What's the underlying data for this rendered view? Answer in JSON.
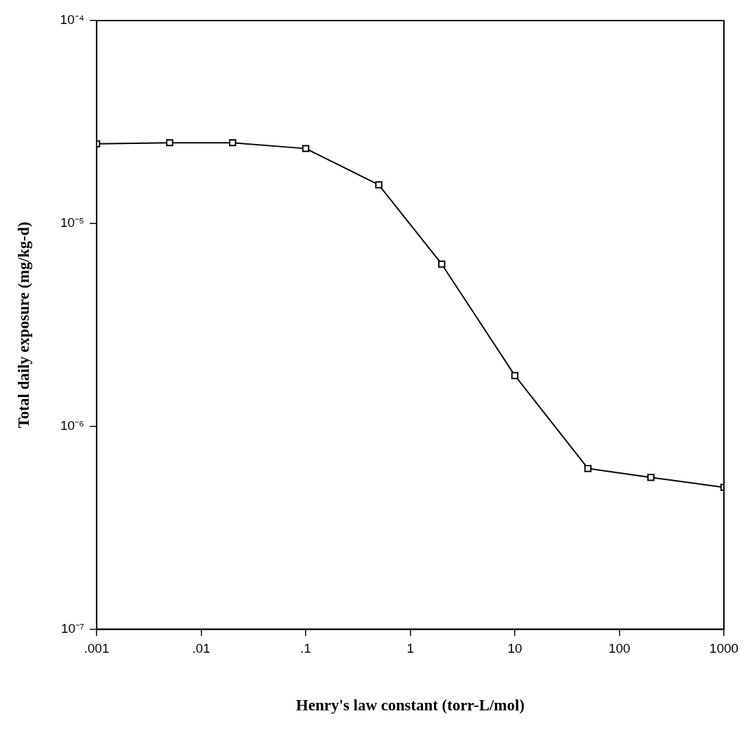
{
  "chart_data": {
    "type": "line",
    "xlabel": "Henry's law constant (torr-L/mol)",
    "ylabel": "Total daily exposure (mg/kg-d)",
    "x": [
      0.001,
      0.005,
      0.02,
      0.1,
      0.5,
      2,
      10,
      50,
      200,
      1000
    ],
    "series": [
      {
        "color": "#000000",
        "values": [
          2.47e-05,
          2.5e-05,
          2.5e-05,
          2.34e-05,
          1.55e-05,
          6.3e-06,
          1.78e-06,
          6.2e-07,
          5.6e-07,
          5e-07
        ]
      }
    ],
    "log": "xy",
    "xlim": [
      0.001,
      1000
    ],
    "ylim": [
      1e-07,
      0.0001
    ],
    "xticks": [
      {
        "value": 0.001,
        "label": ".001"
      },
      {
        "value": 0.01,
        "label": ".01"
      },
      {
        "value": 0.1,
        "label": ".1"
      },
      1,
      10,
      100,
      1000
    ],
    "yticks": [
      {
        "value": 1e-07,
        "label": "10⁻⁷"
      },
      {
        "value": 1e-06,
        "label": "10⁻⁶"
      },
      {
        "value": 1e-05,
        "label": "10⁻⁵"
      },
      {
        "value": 0.0001,
        "label": "10⁻⁴"
      }
    ],
    "grid": false,
    "legend": false,
    "marker": "square",
    "line_style": "solid"
  }
}
